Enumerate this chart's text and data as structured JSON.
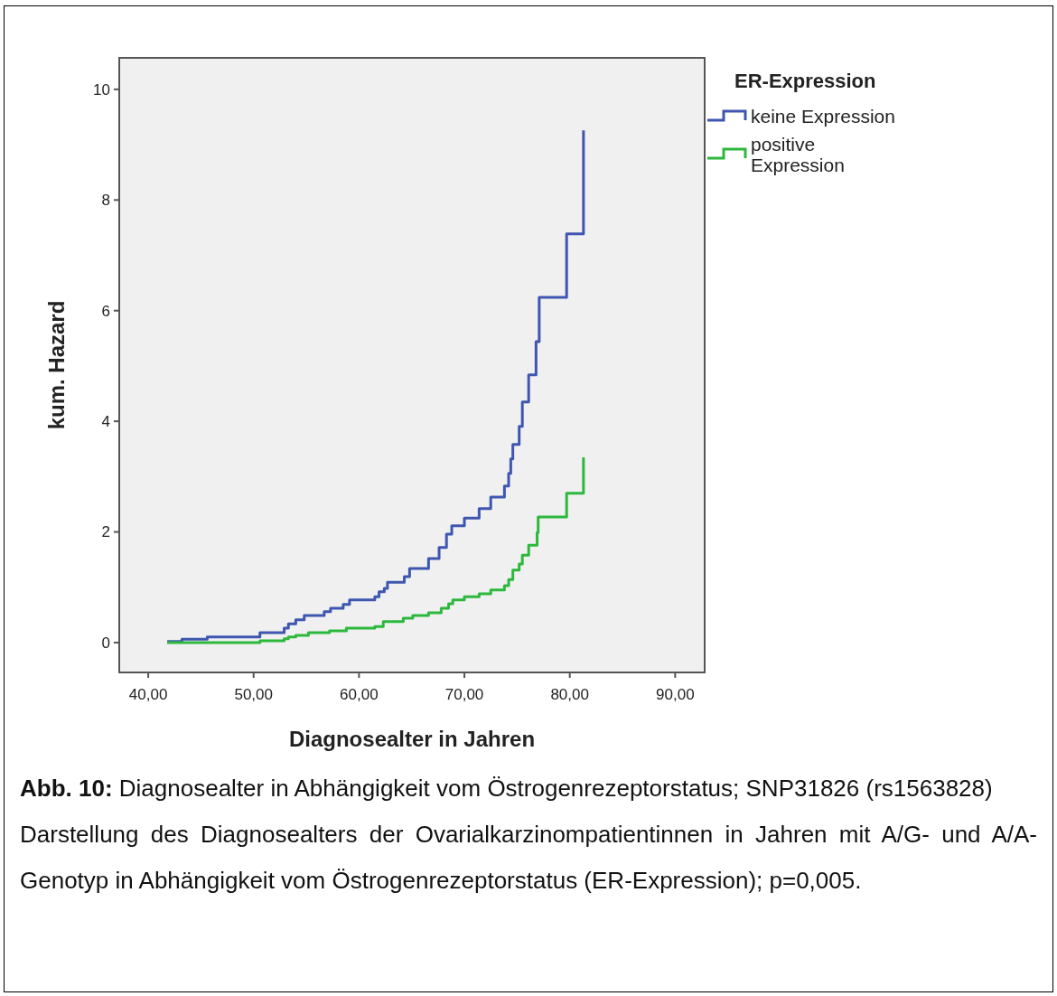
{
  "chart_data": {
    "type": "step",
    "xlabel": "Diagnosealter in Jahren",
    "ylabel": "kum. Hazard",
    "legend_title": "ER-Expression",
    "legend": "top right",
    "grid": false,
    "xlim": [
      37.25,
      92.8
    ],
    "ylim": [
      -0.54,
      10.57
    ],
    "xticks": [
      {
        "value": 40,
        "label": "40,00"
      },
      {
        "value": 50,
        "label": "50,00"
      },
      {
        "value": 60,
        "label": "60,00"
      },
      {
        "value": 70,
        "label": "70,00"
      },
      {
        "value": 80,
        "label": "80,00"
      },
      {
        "value": 90,
        "label": "90,00"
      }
    ],
    "yticks": [
      0,
      2,
      4,
      6,
      8,
      10
    ],
    "series": [
      {
        "name": "keine Expression",
        "color": "#3e56b0",
        "x": [
          41.8,
          43.2,
          45.6,
          50.6,
          52.9,
          53.3,
          54.0,
          54.8,
          56.7,
          57.3,
          58.5,
          59.1,
          61.5,
          61.9,
          62.4,
          62.7,
          64.3,
          64.8,
          66.6,
          67.6,
          68.3,
          68.8,
          70.0,
          71.4,
          72.5,
          73.8,
          74.2,
          74.4,
          74.6,
          75.2,
          75.5,
          76.1,
          76.8,
          77.1,
          79.7,
          81.3
        ],
        "values": [
          0.02,
          0.06,
          0.1,
          0.18,
          0.26,
          0.34,
          0.41,
          0.49,
          0.56,
          0.62,
          0.69,
          0.77,
          0.83,
          0.92,
          0.98,
          1.09,
          1.19,
          1.34,
          1.52,
          1.72,
          1.96,
          2.11,
          2.25,
          2.42,
          2.63,
          2.83,
          3.06,
          3.32,
          3.58,
          3.91,
          4.35,
          4.84,
          5.44,
          6.24,
          7.39,
          9.26
        ]
      },
      {
        "name": "positive Expression",
        "color": "#2db83d",
        "x": [
          41.8,
          50.6,
          52.9,
          53.3,
          54.0,
          55.2,
          57.2,
          58.8,
          61.5,
          62.3,
          64.2,
          65.1,
          66.6,
          67.8,
          68.5,
          68.9,
          70.0,
          71.4,
          72.5,
          73.8,
          74.2,
          74.6,
          75.2,
          75.5,
          76.1,
          76.9,
          77.0,
          79.7,
          81.3
        ],
        "values": [
          0.0,
          0.03,
          0.07,
          0.1,
          0.13,
          0.18,
          0.21,
          0.26,
          0.29,
          0.38,
          0.44,
          0.49,
          0.54,
          0.62,
          0.7,
          0.77,
          0.83,
          0.88,
          0.95,
          1.03,
          1.14,
          1.31,
          1.42,
          1.58,
          1.76,
          1.99,
          2.27,
          2.7,
          3.35
        ]
      }
    ],
    "annotations": [
      "Abb. 10: Diagnosealter in Abhängigkeit vom Östrogenrezeptorstatus; SNP31826 (rs1563828)",
      "Darstellung des Diagnosealters der Ovarialkarzinompatientinnen in Jahren mit A/G- und A/A-Genotyp in Abhängigkeit vom Östrogenrezeptorstatus (ER-Expression); p=0,005."
    ]
  }
}
